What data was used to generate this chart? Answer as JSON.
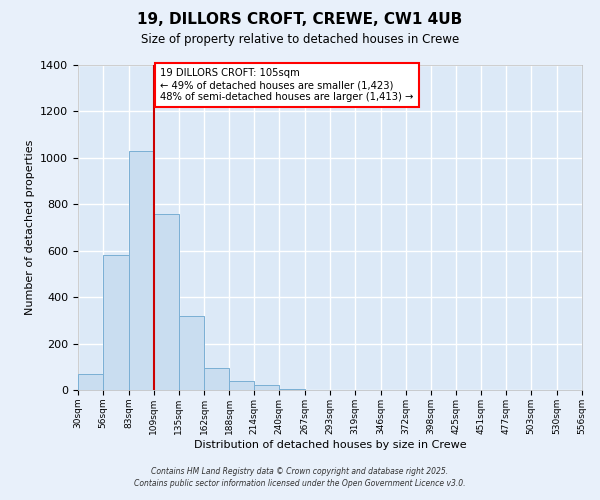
{
  "title": "19, DILLORS CROFT, CREWE, CW1 4UB",
  "subtitle": "Size of property relative to detached houses in Crewe",
  "xlabel": "Distribution of detached houses by size in Crewe",
  "ylabel": "Number of detached properties",
  "bar_color": "#c9ddf0",
  "bar_edge_color": "#7aafd4",
  "fig_bg_color": "#e8f0fa",
  "axes_bg_color": "#dce9f7",
  "grid_color": "#ffffff",
  "bin_edges": [
    30,
    56,
    83,
    109,
    135,
    162,
    188,
    214,
    240,
    267,
    293,
    319,
    346,
    372,
    398,
    425,
    451,
    477,
    503,
    530,
    556
  ],
  "bar_heights": [
    70,
    580,
    1030,
    760,
    320,
    95,
    40,
    20,
    5,
    2,
    1,
    0,
    0,
    0,
    0,
    0,
    0,
    0,
    0,
    0
  ],
  "vline_x": 109,
  "vline_color": "#cc0000",
  "ylim": [
    0,
    1400
  ],
  "yticks": [
    0,
    200,
    400,
    600,
    800,
    1000,
    1200,
    1400
  ],
  "annotation_title": "19 DILLORS CROFT: 105sqm",
  "annotation_line1": "← 49% of detached houses are smaller (1,423)",
  "annotation_line2": "48% of semi-detached houses are larger (1,413) →",
  "footer1": "Contains HM Land Registry data © Crown copyright and database right 2025.",
  "footer2": "Contains public sector information licensed under the Open Government Licence v3.0.",
  "figsize": [
    6.0,
    5.0
  ],
  "dpi": 100
}
